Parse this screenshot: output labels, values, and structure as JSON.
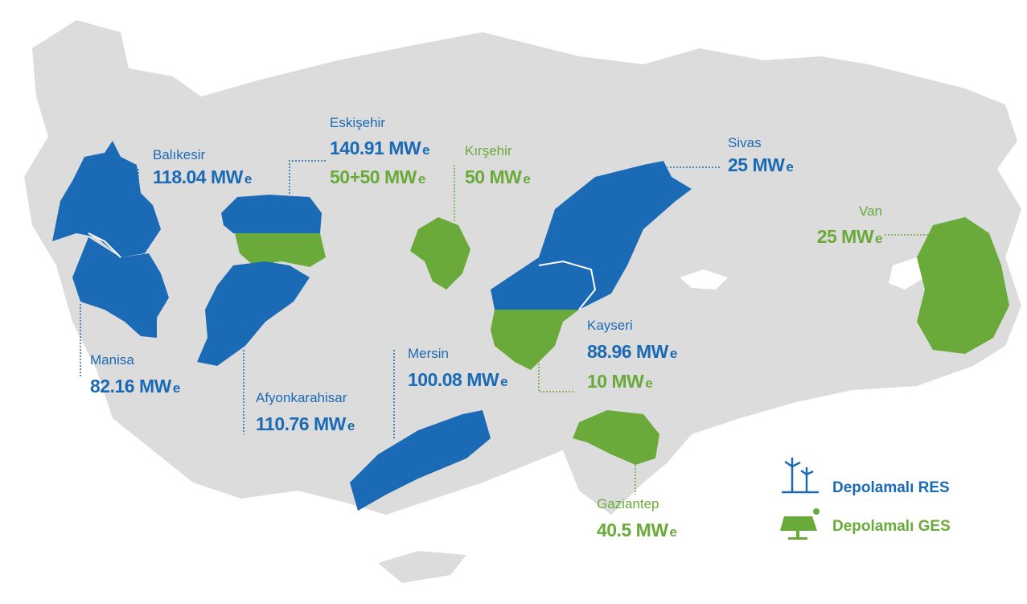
{
  "provinces": [
    {
      "name": "Balıkesir",
      "capacities": [
        {
          "text": "118.04 MWe",
          "color": "#1a6ab5"
        }
      ]
    },
    {
      "name": "Eskişehir",
      "capacities": [
        {
          "text": "140.91 MWe",
          "color": "#1a6ab5"
        },
        {
          "text": "50+50 MWe",
          "color": "#6aaa3a"
        }
      ]
    },
    {
      "name": "Kırşehir",
      "capacities": [
        {
          "text": "50 MWe",
          "color": "#6aaa3a"
        }
      ]
    },
    {
      "name": "Sivas",
      "capacities": [
        {
          "text": "25 MWe",
          "color": "#1a6ab5"
        }
      ]
    },
    {
      "name": "Van",
      "capacities": [
        {
          "text": "25 MWe",
          "color": "#6aaa3a"
        }
      ]
    },
    {
      "name": "Manisa",
      "capacities": [
        {
          "text": "82.16 MWe",
          "color": "#1a6ab5"
        }
      ]
    },
    {
      "name": "Afyonkarahisar",
      "capacities": [
        {
          "text": "110.76 MWe",
          "color": "#1a6ab5"
        }
      ]
    },
    {
      "name": "Mersin",
      "capacities": [
        {
          "text": "100.08 MWe",
          "color": "#1a6ab5"
        }
      ]
    },
    {
      "name": "Kayseri",
      "capacities": [
        {
          "text": "88.96 MWe",
          "color": "#1a6ab5"
        },
        {
          "text": "10 MWe",
          "color": "#6aaa3a"
        }
      ]
    },
    {
      "name": "Gaziantep",
      "capacities": [
        {
          "text": "40.5 MWe",
          "color": "#6aaa3a"
        }
      ]
    }
  ],
  "legend": [
    {
      "label": "Depolamalı RES",
      "color": "#1a6ab5"
    },
    {
      "label": "Depolamalı GES",
      "color": "#6aaa3a"
    }
  ]
}
